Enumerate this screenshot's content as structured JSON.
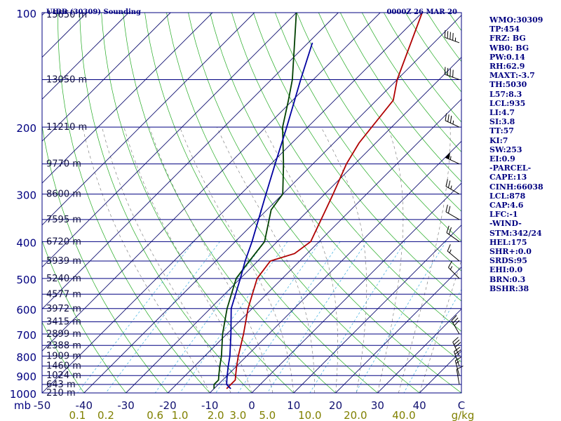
{
  "chart_data": {
    "type": "line",
    "title": "UIBB (30309) Sounding",
    "date_label": "0000Z 26 MAR 20",
    "pressure_unit_label": "mb",
    "mixing_ratio_unit_label": "g/kg",
    "pressure_ticks": [
      100,
      200,
      300,
      400,
      500,
      600,
      700,
      800,
      900,
      1000
    ],
    "temperature_ticks": [
      -50,
      -40,
      -30,
      -20,
      -10,
      0,
      10,
      20,
      30,
      40
    ],
    "temperature_axis_end_label": "C",
    "temperature_range": [
      -50,
      50
    ],
    "mixing_ratio_ticks": [
      "0.1",
      "0.2",
      "0.6",
      "1.0",
      "2.0",
      "3.0",
      "5.0",
      "10.0",
      "20.0",
      "40.0"
    ],
    "height_labels": [
      {
        "p": 100,
        "label": "15650 m"
      },
      {
        "p": 150,
        "label": "13050 m"
      },
      {
        "p": 200,
        "label": "11210 m"
      },
      {
        "p": 250,
        "label": "9770 m"
      },
      {
        "p": 300,
        "label": "8600 m"
      },
      {
        "p": 350,
        "label": "7595 m"
      },
      {
        "p": 400,
        "label": "6720 m"
      },
      {
        "p": 450,
        "label": "5939 m"
      },
      {
        "p": 500,
        "label": "5240 m"
      },
      {
        "p": 550,
        "label": "4577 m"
      },
      {
        "p": 600,
        "label": "3972 m"
      },
      {
        "p": 650,
        "label": "3415 m"
      },
      {
        "p": 700,
        "label": "2899 m"
      },
      {
        "p": 750,
        "label": "2388 m"
      },
      {
        "p": 800,
        "label": "1909 m"
      },
      {
        "p": 850,
        "label": "1460 m"
      },
      {
        "p": 900,
        "label": "1024 m"
      },
      {
        "p": 950,
        "label": "643 m"
      },
      {
        "p": 1000,
        "label": "210 m"
      }
    ],
    "series": [
      {
        "color": "#b00000",
        "points": [
          {
            "p": 975,
            "t": -7
          },
          {
            "p": 950,
            "t": -7
          },
          {
            "p": 925,
            "t": -7
          },
          {
            "p": 900,
            "t": -8
          },
          {
            "p": 850,
            "t": -10
          },
          {
            "p": 800,
            "t": -12
          },
          {
            "p": 700,
            "t": -16
          },
          {
            "p": 600,
            "t": -21
          },
          {
            "p": 500,
            "t": -26
          },
          {
            "p": 450,
            "t": -27
          },
          {
            "p": 430,
            "t": -23
          },
          {
            "p": 400,
            "t": -22
          },
          {
            "p": 330,
            "t": -26
          },
          {
            "p": 300,
            "t": -28
          },
          {
            "p": 250,
            "t": -32
          },
          {
            "p": 220,
            "t": -34
          },
          {
            "p": 170,
            "t": -36
          },
          {
            "p": 150,
            "t": -40
          },
          {
            "p": 100,
            "t": -50
          }
        ]
      },
      {
        "color": "#004000",
        "points": [
          {
            "p": 975,
            "t": -10
          },
          {
            "p": 950,
            "t": -11
          },
          {
            "p": 925,
            "t": -11
          },
          {
            "p": 900,
            "t": -12
          },
          {
            "p": 850,
            "t": -14
          },
          {
            "p": 800,
            "t": -16
          },
          {
            "p": 700,
            "t": -21
          },
          {
            "p": 600,
            "t": -26
          },
          {
            "p": 500,
            "t": -31
          },
          {
            "p": 450,
            "t": -32
          },
          {
            "p": 400,
            "t": -33
          },
          {
            "p": 330,
            "t": -39
          },
          {
            "p": 300,
            "t": -40
          },
          {
            "p": 250,
            "t": -47
          },
          {
            "p": 200,
            "t": -56
          },
          {
            "p": 170,
            "t": -61
          },
          {
            "p": 150,
            "t": -65
          },
          {
            "p": 100,
            "t": -80
          }
        ]
      },
      {
        "color": "#0000a0",
        "points": [
          {
            "p": 975,
            "t": -6
          },
          {
            "p": 950,
            "t": -8
          },
          {
            "p": 925,
            "t": -9
          },
          {
            "p": 900,
            "t": -10
          },
          {
            "p": 850,
            "t": -12
          },
          {
            "p": 800,
            "t": -14
          },
          {
            "p": 700,
            "t": -19
          },
          {
            "p": 600,
            "t": -25
          },
          {
            "p": 500,
            "t": -30
          },
          {
            "p": 450,
            "t": -33
          },
          {
            "p": 400,
            "t": -36
          },
          {
            "p": 300,
            "t": -44
          },
          {
            "p": 250,
            "t": -49
          },
          {
            "p": 200,
            "t": -55
          },
          {
            "p": 150,
            "t": -63
          },
          {
            "p": 120,
            "t": -69
          }
        ]
      }
    ],
    "wind_barbs": [
      {
        "p": 120,
        "dir": 290,
        "kt": 45
      },
      {
        "p": 150,
        "dir": 290,
        "kt": 40
      },
      {
        "p": 200,
        "dir": 295,
        "kt": 35
      },
      {
        "p": 250,
        "dir": 295,
        "kt": 55
      },
      {
        "p": 300,
        "dir": 300,
        "kt": 25
      },
      {
        "p": 350,
        "dir": 300,
        "kt": 20
      },
      {
        "p": 400,
        "dir": 305,
        "kt": 20
      },
      {
        "p": 450,
        "dir": 310,
        "kt": 15
      },
      {
        "p": 500,
        "dir": 315,
        "kt": 15
      },
      {
        "p": 700,
        "dir": 330,
        "kt": 30
      },
      {
        "p": 800,
        "dir": 335,
        "kt": 30
      },
      {
        "p": 850,
        "dir": 340,
        "kt": 20
      },
      {
        "p": 900,
        "dir": 345,
        "kt": 15
      },
      {
        "p": 950,
        "dir": 350,
        "kt": 10
      }
    ]
  },
  "stats": [
    "WMO:30309",
    "TP:454",
    "FRZ: BG",
    "WB0: BG",
    "PW:0.14",
    "RH:62.9",
    "MAXT:-3.7",
    "TH:5030",
    "L57:8.3",
    "LCL:935",
    "LI:4.7",
    "SI:3.8",
    "TT:57",
    "KI:7",
    "SW:253",
    "EI:0.9",
    "-PARCEL-",
    "CAPE:13",
    "CINH:66038",
    "LCL:878",
    "CAP:4.6",
    "LFC:-1",
    "-WIND-",
    "STM:342/24",
    "HEL:175",
    "SHR+:0.0",
    "SRDS:95",
    "EHI:0.0",
    "BRN:0.3",
    "BSHR:38"
  ]
}
